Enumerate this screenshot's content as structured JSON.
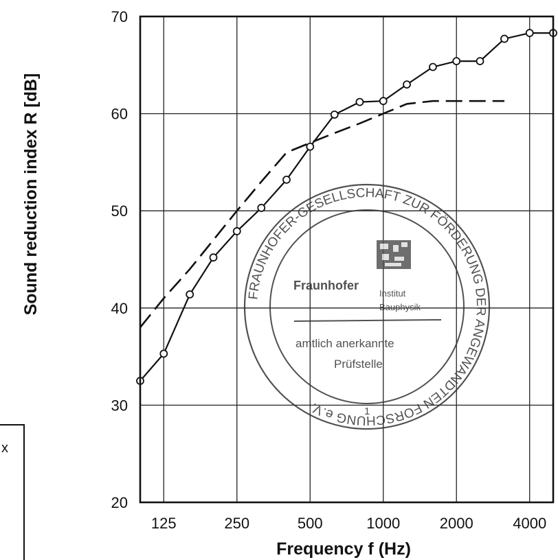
{
  "chart_data": {
    "type": "line",
    "xlabel": "Frequency  f  (Hz)",
    "ylabel": "Sound reduction index R [dB]",
    "x_tick_labels": [
      "125",
      "250",
      "500",
      "1000",
      "2000",
      "4000"
    ],
    "y_tick_labels": [
      "20",
      "30",
      "40",
      "50",
      "60",
      "70"
    ],
    "x_scale": "log",
    "xlim": [
      100,
      5000
    ],
    "ylim": [
      20,
      70
    ],
    "grid": true,
    "series": [
      {
        "style": "solid-with-circles",
        "x": [
          100,
          125,
          160,
          200,
          250,
          315,
          400,
          500,
          630,
          800,
          1000,
          1250,
          1600,
          2000,
          2500,
          3150,
          4000,
          5000
        ],
        "y": [
          32.5,
          35.3,
          41.4,
          45.2,
          47.9,
          50.3,
          53.2,
          56.6,
          59.9,
          61.2,
          61.3,
          63.0,
          64.8,
          65.4,
          65.4,
          67.7,
          68.3,
          68.3
        ]
      },
      {
        "style": "dashed",
        "x": [
          100,
          125,
          160,
          200,
          250,
          315,
          400,
          500,
          630,
          800,
          1000,
          1250,
          1600,
          2000,
          2500,
          3150
        ],
        "y": [
          38,
          41,
          44,
          47,
          50,
          53,
          56,
          57,
          58,
          59,
          60,
          61,
          61.3,
          61.3,
          61.3,
          61.3
        ]
      }
    ]
  },
  "stamp": {
    "ring_text": "FRAUNHOFER-GESELLSCHAFT ZUR FÖRDERUNG DER ANGEWANDTEN FORSCHUNG e.V.",
    "org": "Fraunhofer",
    "institute_line1": "Institut",
    "institute_line2": "Bauphysik",
    "recognition_line1": "amtlich anerkannte",
    "recognition_line2": "Prüfstelle",
    "number": "1"
  },
  "legend": {
    "fragment": "x"
  }
}
